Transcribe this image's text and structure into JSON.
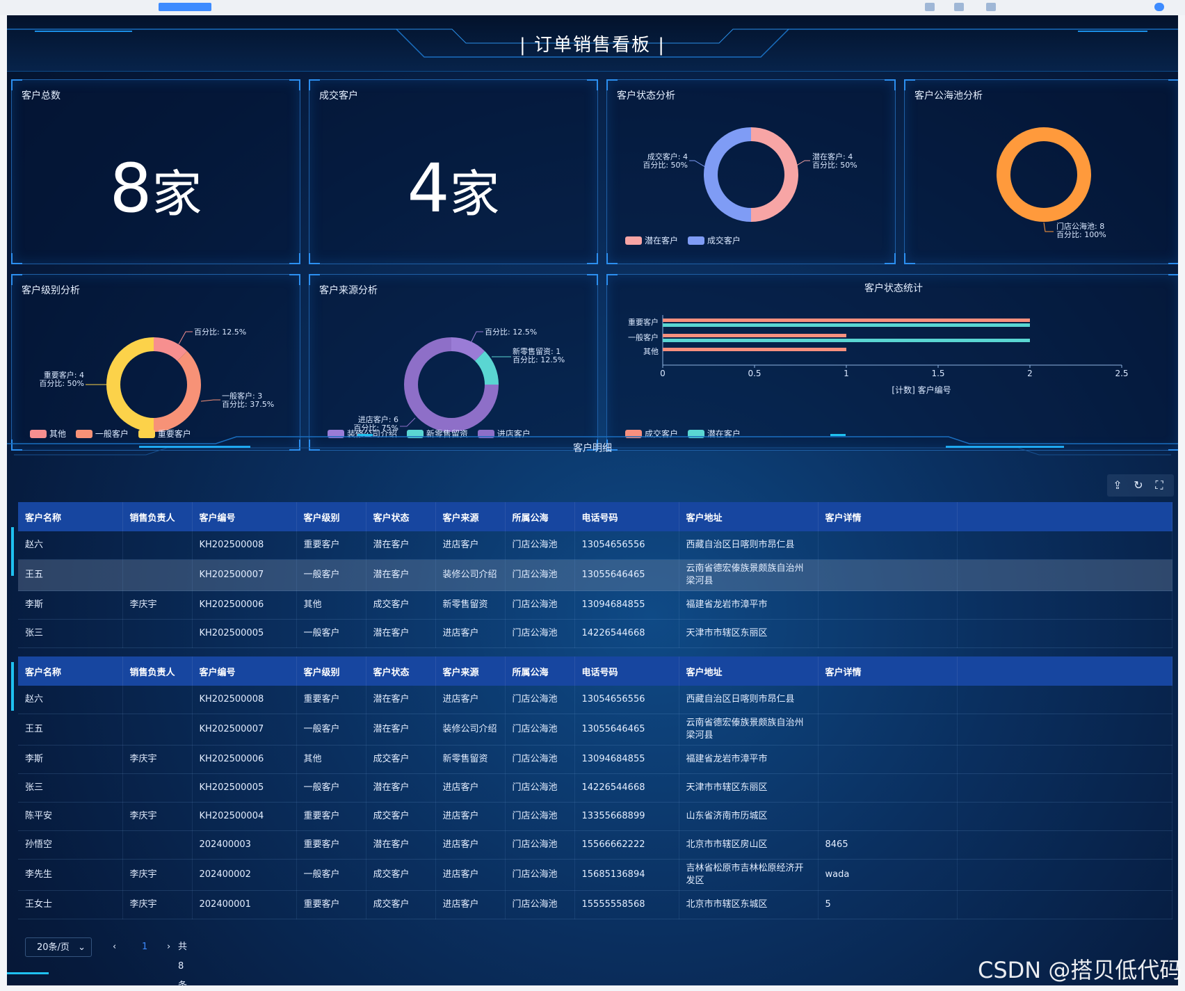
{
  "page_title": "| 订单销售看板 |",
  "kpi_total": {
    "title": "客户总数",
    "value": "8",
    "unit": "家"
  },
  "kpi_deal": {
    "title": "成交客户",
    "value": "4",
    "unit": "家"
  },
  "status_pie": {
    "title": "客户状态分析",
    "labels": [
      {
        "line1": "潜在客户: 4",
        "line2": "百分比: 50%"
      },
      {
        "line1": "成交客户: 4",
        "line2": "百分比: 50%"
      }
    ],
    "legend": [
      {
        "name": "潜在客户",
        "color": "#f7a5a5"
      },
      {
        "name": "成交客户",
        "color": "#7f9cf5"
      }
    ]
  },
  "pool_pie": {
    "title": "客户公海池分析",
    "labels": [
      {
        "line1": "门店公海池: 8",
        "line2": "百分比: 100%"
      }
    ]
  },
  "level_pie": {
    "title": "客户级别分析",
    "labels": [
      {
        "line1": "",
        "line2": "百分比: 12.5%"
      },
      {
        "line1": "一般客户: 3",
        "line2": "百分比: 37.5%"
      },
      {
        "line1": "重要客户: 4",
        "line2": "百分比: 50%"
      }
    ],
    "legend": [
      {
        "name": "其他",
        "color": "#f78f8f"
      },
      {
        "name": "一般客户",
        "color": "#f79277"
      },
      {
        "name": "重要客户",
        "color": "#fcd24a"
      }
    ]
  },
  "source_pie": {
    "title": "客户来源分析",
    "labels": [
      {
        "line1": "",
        "line2": "百分比: 12.5%"
      },
      {
        "line1": "新零售留资: 1",
        "line2": "百分比: 12.5%"
      },
      {
        "line1": "进店客户: 6",
        "line2": "百分比: 75%"
      }
    ],
    "legend": [
      {
        "name": "装修公司介绍",
        "color": "#9a7cd6"
      },
      {
        "name": "新零售留资",
        "color": "#5ad6d2"
      },
      {
        "name": "进店客户",
        "color": "#8e6fc8"
      }
    ]
  },
  "status_bar": {
    "title": "客户状态统计",
    "xlabel": "[计数] 客户编号",
    "legend": [
      {
        "name": "成交客户",
        "color": "#f7907e"
      },
      {
        "name": "潜在客户",
        "color": "#5ad6d2"
      }
    ]
  },
  "chart_data": [
    {
      "type": "pie",
      "title": "客户状态分析",
      "categories": [
        "潜在客户",
        "成交客户"
      ],
      "values": [
        4,
        4
      ]
    },
    {
      "type": "pie",
      "title": "客户公海池分析",
      "categories": [
        "门店公海池"
      ],
      "values": [
        8
      ]
    },
    {
      "type": "pie",
      "title": "客户级别分析",
      "categories": [
        "其他",
        "一般客户",
        "重要客户"
      ],
      "values": [
        1,
        3,
        4
      ]
    },
    {
      "type": "pie",
      "title": "客户来源分析",
      "categories": [
        "装修公司介绍",
        "新零售留资",
        "进店客户"
      ],
      "values": [
        1,
        1,
        6
      ]
    },
    {
      "type": "bar",
      "orientation": "horizontal",
      "title": "客户状态统计",
      "categories": [
        "重要客户",
        "一般客户",
        "其他"
      ],
      "series": [
        {
          "name": "成交客户",
          "values": [
            2,
            1,
            1
          ]
        },
        {
          "name": "潜在客户",
          "values": [
            2,
            2,
            0
          ]
        }
      ],
      "xlabel": "[计数] 客户编号",
      "xlim": [
        0,
        2.5
      ],
      "xticks": [
        "0",
        "0.5",
        "1",
        "1.5",
        "2",
        "2.5"
      ]
    }
  ],
  "detail": {
    "title": "客户明细",
    "tools": [
      "⇪",
      "↻",
      "⛶"
    ],
    "columns": [
      "客户名称",
      "销售负责人",
      "客户编号",
      "客户级别",
      "客户状态",
      "客户来源",
      "所属公海",
      "电话号码",
      "客户地址",
      "客户详情"
    ],
    "rows_top": [
      [
        "赵六",
        "",
        "KH202500008",
        "重要客户",
        "潜在客户",
        "进店客户",
        "门店公海池",
        "13054656556",
        "西藏自治区日喀则市昂仁县",
        ""
      ],
      [
        "王五",
        "",
        "KH202500007",
        "一般客户",
        "潜在客户",
        "装修公司介绍",
        "门店公海池",
        "13055646465",
        "云南省德宏傣族景颇族自治州梁河县",
        ""
      ],
      [
        "李斯",
        "李庆宇",
        "KH202500006",
        "其他",
        "成交客户",
        "新零售留资",
        "门店公海池",
        "13094684855",
        "福建省龙岩市漳平市",
        ""
      ],
      [
        "张三",
        "",
        "KH202500005",
        "一般客户",
        "潜在客户",
        "进店客户",
        "门店公海池",
        "14226544668",
        "天津市市辖区东丽区",
        ""
      ]
    ],
    "rows": [
      [
        "赵六",
        "",
        "KH202500008",
        "重要客户",
        "潜在客户",
        "进店客户",
        "门店公海池",
        "13054656556",
        "西藏自治区日喀则市昂仁县",
        ""
      ],
      [
        "王五",
        "",
        "KH202500007",
        "一般客户",
        "潜在客户",
        "装修公司介绍",
        "门店公海池",
        "13055646465",
        "云南省德宏傣族景颇族自治州梁河县",
        ""
      ],
      [
        "李斯",
        "李庆宇",
        "KH202500006",
        "其他",
        "成交客户",
        "新零售留资",
        "门店公海池",
        "13094684855",
        "福建省龙岩市漳平市",
        ""
      ],
      [
        "张三",
        "",
        "KH202500005",
        "一般客户",
        "潜在客户",
        "进店客户",
        "门店公海池",
        "14226544668",
        "天津市市辖区东丽区",
        ""
      ],
      [
        "陈平安",
        "李庆宇",
        "KH202500004",
        "重要客户",
        "成交客户",
        "进店客户",
        "门店公海池",
        "13355668899",
        "山东省济南市历城区",
        ""
      ],
      [
        "孙悟空",
        "",
        "202400003",
        "重要客户",
        "潜在客户",
        "进店客户",
        "门店公海池",
        "15566662222",
        "北京市市辖区房山区",
        "8465"
      ],
      [
        "李先生",
        "李庆宇",
        "202400002",
        "一般客户",
        "成交客户",
        "进店客户",
        "门店公海池",
        "15685136894",
        "吉林省松原市吉林松原经济开发区",
        "wada"
      ],
      [
        "王女士",
        "李庆宇",
        "202400001",
        "重要客户",
        "成交客户",
        "进店客户",
        "门店公海池",
        "15555558568",
        "北京市市辖区东城区",
        "5"
      ]
    ]
  },
  "pager": {
    "page_size": "20条/页",
    "prev": "‹",
    "page": "1",
    "next": "›",
    "total": "共 8 条"
  },
  "watermark": "CSDN @搭贝低代码"
}
